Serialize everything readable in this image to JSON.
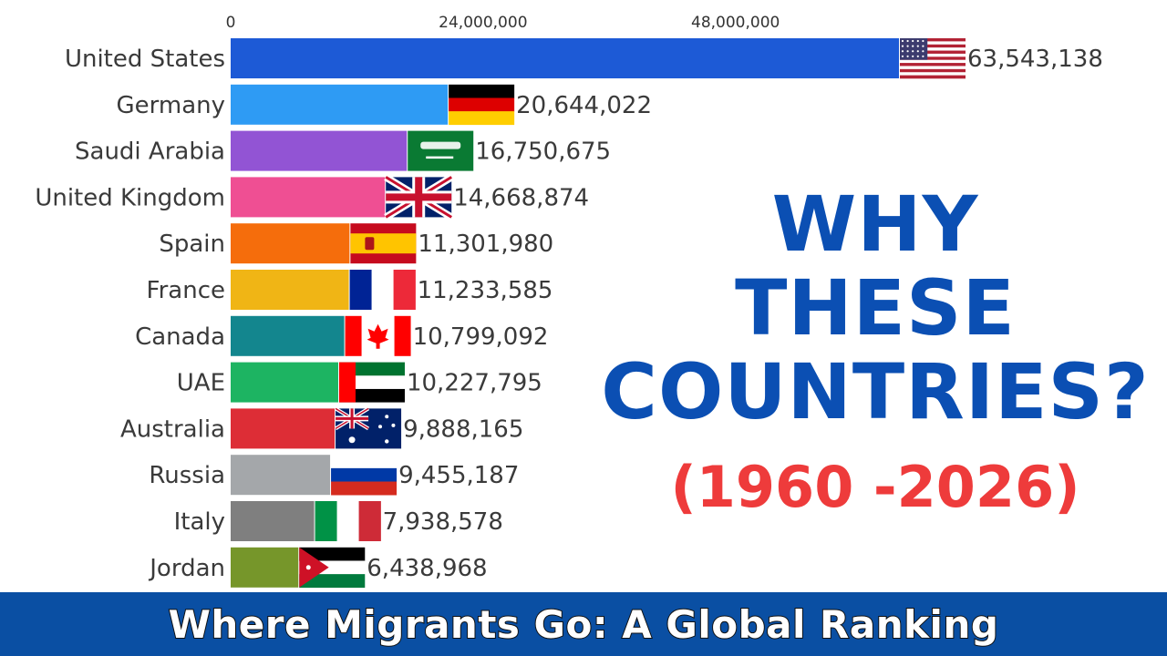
{
  "chart_data": {
    "type": "bar",
    "orientation": "horizontal",
    "categories": [
      "United States",
      "Germany",
      "Saudi Arabia",
      "United Kingdom",
      "Spain",
      "France",
      "Canada",
      "UAE",
      "Australia",
      "Russia",
      "Italy",
      "Jordan"
    ],
    "values": [
      63543138,
      20644022,
      16750675,
      14668874,
      11301980,
      11233585,
      10799092,
      10227795,
      9888165,
      9455187,
      7938578,
      6438968
    ],
    "value_labels": [
      "63,543,138",
      "20,644,022",
      "16,750,675",
      "14,668,874",
      "11,301,980",
      "11,233,585",
      "10,799,092",
      "10,227,795",
      "9,888,165",
      "9,455,187",
      "7,938,578",
      "6,438,968"
    ],
    "bar_colors": [
      "#1d5ad6",
      "#2e9bf4",
      "#9254d4",
      "#ef4f93",
      "#f56d0c",
      "#f0b515",
      "#13868e",
      "#1db462",
      "#dd2d36",
      "#a4a7aa",
      "#7f7f7f",
      "#76962a"
    ],
    "flags": [
      "us-flag-icon",
      "germany-flag-icon",
      "saudi-arabia-flag-icon",
      "uk-flag-icon",
      "spain-flag-icon",
      "france-flag-icon",
      "canada-flag-icon",
      "uae-flag-icon",
      "australia-flag-icon",
      "russia-flag-icon",
      "italy-flag-icon",
      "jordan-flag-icon"
    ],
    "x_ticks": [
      0,
      24000000,
      48000000
    ],
    "x_tick_labels": [
      "0",
      "24,000,000",
      "48,000,000"
    ],
    "xlim": [
      0,
      63543138
    ],
    "grid": false,
    "legend": "none"
  },
  "headline": {
    "line1": "WHY",
    "line2": "THESE",
    "line3": "COUNTRIES?",
    "years": "(1960 -2026)"
  },
  "banner": {
    "title": "Where Migrants Go: A Global Ranking"
  },
  "colors": {
    "headline": "#0b4fb3",
    "years": "#ee3b3b",
    "banner": "#0a4fa3"
  }
}
